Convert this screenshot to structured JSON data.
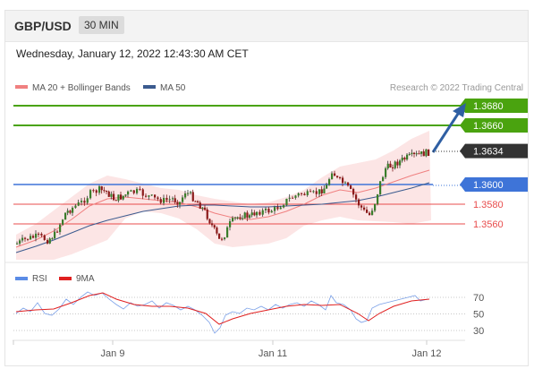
{
  "header": {
    "pair": "GBP/USD",
    "timeframe": "30 MIN"
  },
  "datetime": "Wednesday, January 12, 2022 12:43:30 AM CET",
  "legend": {
    "ma20": "MA 20 + Bollinger Bands",
    "ma50": "MA 50",
    "credit": "Research © 2022 Trading Central"
  },
  "rsi_legend": {
    "rsi": "RSI",
    "ma9": "9MA"
  },
  "colors": {
    "resistance": "#4aa30f",
    "support": "#e84c4c",
    "pivot": "#3e74d8",
    "current": "#333333",
    "ma20": "#f08080",
    "ma50": "#3b5b8f",
    "arrow": "#2f5fa3"
  },
  "chart_data": [
    {
      "type": "line",
      "chart": "price",
      "ylim": [
        1.35,
        1.37
      ],
      "x_tick_labels": [
        "Jan 9",
        "Jan 11",
        "Jan 12"
      ],
      "levels": [
        {
          "label": "1.3680",
          "value": 1.368,
          "kind": "resistance"
        },
        {
          "label": "1.3660",
          "value": 1.366,
          "kind": "resistance"
        },
        {
          "label": "1.3634",
          "value": 1.3634,
          "kind": "current"
        },
        {
          "label": "1.3600",
          "value": 1.36,
          "kind": "pivot"
        },
        {
          "label": "1.3580",
          "value": 1.358,
          "kind": "support"
        },
        {
          "label": "1.3560",
          "value": 1.356,
          "kind": "support"
        }
      ],
      "series": [
        {
          "name": "MA 20 + Bollinger Bands"
        },
        {
          "name": "MA 50"
        }
      ]
    },
    {
      "type": "line",
      "chart": "rsi",
      "ylim": [
        20,
        80
      ],
      "y_ticks": [
        70,
        50,
        30
      ],
      "series": [
        {
          "name": "RSI"
        },
        {
          "name": "9MA"
        }
      ]
    }
  ]
}
